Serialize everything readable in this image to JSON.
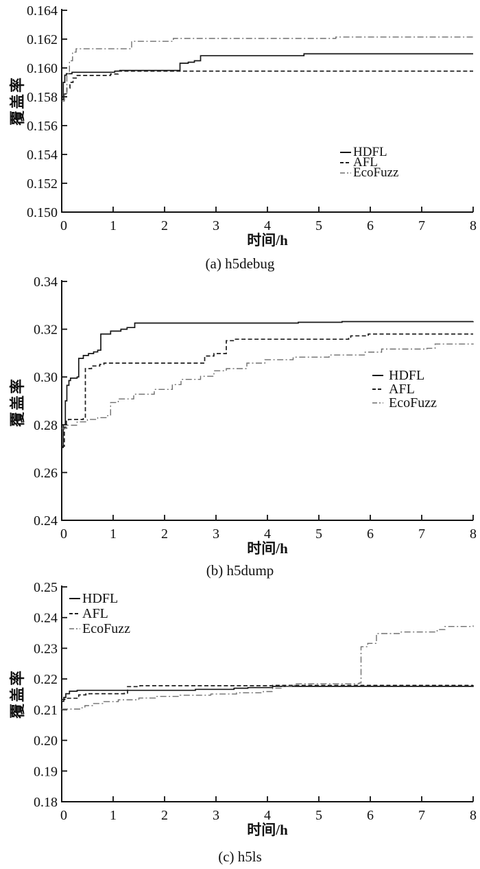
{
  "figure": {
    "ylabel": "覆盖率",
    "xlabel": "时间/h",
    "series_colors": {
      "HDFL": "#161616",
      "AFL": "#1d1d1d",
      "EcoFuzz": "#6e6e6e"
    }
  },
  "chart_data": [
    {
      "type": "line",
      "caption": "(a) h5debug",
      "xlabel": "时间/h",
      "ylabel": "覆盖率",
      "xlim": [
        0,
        8
      ],
      "ylim": [
        0.15,
        0.164
      ],
      "xticks": [
        "0",
        "1",
        "2",
        "3",
        "4",
        "5",
        "6",
        "7",
        "8"
      ],
      "yticks": [
        "0.150",
        "0.152",
        "0.154",
        "0.156",
        "0.158",
        "0.160",
        "0.162",
        "0.164"
      ],
      "grid": false,
      "legend_position": "right-center",
      "series": [
        {
          "name": "HDFL",
          "style": "solid",
          "color": "#161616",
          "points": [
            [
              0,
              0.1578
            ],
            [
              0.03,
              0.159
            ],
            [
              0.06,
              0.1595
            ],
            [
              0.09,
              0.1596
            ],
            [
              0.2,
              0.1597
            ],
            [
              1.03,
              0.15978
            ],
            [
              1.13,
              0.15983
            ],
            [
              2.3,
              0.16033
            ],
            [
              2.46,
              0.1604
            ],
            [
              2.58,
              0.1605
            ],
            [
              2.7,
              0.16085
            ],
            [
              4.71,
              0.16098
            ],
            [
              8,
              0.16098
            ]
          ]
        },
        {
          "name": "AFL",
          "style": "dashed",
          "color": "#1d1d1d",
          "points": [
            [
              0,
              0.1578
            ],
            [
              0.05,
              0.1582
            ],
            [
              0.1,
              0.1586
            ],
            [
              0.16,
              0.159
            ],
            [
              0.22,
              0.1593
            ],
            [
              0.3,
              0.15948
            ],
            [
              0.95,
              0.15958
            ],
            [
              1.1,
              0.15978
            ],
            [
              8,
              0.15978
            ]
          ]
        },
        {
          "name": "EcoFuzz",
          "style": "dashdot",
          "color": "#6e6e6e",
          "points": [
            [
              0,
              0.1577
            ],
            [
              0.05,
              0.1582
            ],
            [
              0.1,
              0.1596
            ],
            [
              0.15,
              0.1605
            ],
            [
              0.21,
              0.1611
            ],
            [
              0.28,
              0.16133
            ],
            [
              1.36,
              0.16185
            ],
            [
              2.17,
              0.16205
            ],
            [
              5.33,
              0.16215
            ],
            [
              8,
              0.16215
            ]
          ]
        }
      ]
    },
    {
      "type": "line",
      "caption": "(b) h5dump",
      "xlabel": "时间/h",
      "ylabel": "覆盖率",
      "xlim": [
        0,
        8
      ],
      "ylim": [
        0.24,
        0.34
      ],
      "xticks": [
        "0",
        "1",
        "2",
        "3",
        "4",
        "5",
        "6",
        "7",
        "8"
      ],
      "yticks": [
        "0.24",
        "0.26",
        "0.28",
        "0.30",
        "0.32",
        "0.34"
      ],
      "grid": false,
      "legend_position": "right-center",
      "series": [
        {
          "name": "HDFL",
          "style": "solid",
          "color": "#161616",
          "points": [
            [
              0,
              0.2705
            ],
            [
              0.03,
              0.28
            ],
            [
              0.07,
              0.29
            ],
            [
              0.1,
              0.2965
            ],
            [
              0.14,
              0.2985
            ],
            [
              0.17,
              0.2995
            ],
            [
              0.3,
              0.3
            ],
            [
              0.33,
              0.3078
            ],
            [
              0.42,
              0.309
            ],
            [
              0.52,
              0.3098
            ],
            [
              0.62,
              0.3105
            ],
            [
              0.7,
              0.3112
            ],
            [
              0.76,
              0.318
            ],
            [
              0.95,
              0.3192
            ],
            [
              1.15,
              0.32
            ],
            [
              1.27,
              0.3207
            ],
            [
              1.42,
              0.3226
            ],
            [
              4.6,
              0.3229
            ],
            [
              5.45,
              0.3232
            ],
            [
              8,
              0.3233
            ]
          ]
        },
        {
          "name": "AFL",
          "style": "dashed",
          "color": "#1d1d1d",
          "points": [
            [
              0,
              0.271
            ],
            [
              0.05,
              0.279
            ],
            [
              0.09,
              0.2815
            ],
            [
              0.13,
              0.2822
            ],
            [
              0.42,
              0.2826
            ],
            [
              0.46,
              0.3035
            ],
            [
              0.58,
              0.3046
            ],
            [
              0.74,
              0.3053
            ],
            [
              0.82,
              0.3058
            ],
            [
              2.78,
              0.3088
            ],
            [
              2.96,
              0.3098
            ],
            [
              3.2,
              0.3152
            ],
            [
              3.36,
              0.3158
            ],
            [
              5.58,
              0.3162
            ],
            [
              5.62,
              0.3172
            ],
            [
              5.96,
              0.318
            ],
            [
              8,
              0.318
            ]
          ]
        },
        {
          "name": "EcoFuzz",
          "style": "dashdot",
          "color": "#6e6e6e",
          "points": [
            [
              0,
              0.2785
            ],
            [
              0.1,
              0.2798
            ],
            [
              0.3,
              0.2812
            ],
            [
              0.5,
              0.2822
            ],
            [
              0.7,
              0.283
            ],
            [
              0.88,
              0.2838
            ],
            [
              0.95,
              0.2893
            ],
            [
              1.1,
              0.2908
            ],
            [
              1.4,
              0.2928
            ],
            [
              1.8,
              0.2948
            ],
            [
              2.15,
              0.2968
            ],
            [
              2.32,
              0.299
            ],
            [
              2.7,
              0.3003
            ],
            [
              2.96,
              0.3026
            ],
            [
              3.2,
              0.3035
            ],
            [
              3.6,
              0.3058
            ],
            [
              3.95,
              0.3072
            ],
            [
              4.5,
              0.3083
            ],
            [
              5.2,
              0.3092
            ],
            [
              5.9,
              0.3104
            ],
            [
              6.22,
              0.3117
            ],
            [
              7.1,
              0.312
            ],
            [
              7.26,
              0.3138
            ],
            [
              8,
              0.314
            ]
          ]
        }
      ]
    },
    {
      "type": "line",
      "caption": "(c) h5ls",
      "xlabel": "时间/h",
      "ylabel": "覆盖率",
      "xlim": [
        0,
        8
      ],
      "ylim": [
        0.18,
        0.25
      ],
      "xticks": [
        "0",
        "1",
        "2",
        "3",
        "4",
        "5",
        "6",
        "7",
        "8"
      ],
      "yticks": [
        "0.18",
        "0.19",
        "0.20",
        "0.21",
        "0.22",
        "0.23",
        "0.24",
        "0.25"
      ],
      "grid": false,
      "legend_position": "upper-left",
      "series": [
        {
          "name": "HDFL",
          "style": "solid",
          "color": "#161616",
          "points": [
            [
              0,
              0.2127
            ],
            [
              0.04,
              0.214
            ],
            [
              0.08,
              0.2152
            ],
            [
              0.15,
              0.216
            ],
            [
              0.3,
              0.2163
            ],
            [
              2.6,
              0.2166
            ],
            [
              3.35,
              0.217
            ],
            [
              3.62,
              0.2172
            ],
            [
              4.1,
              0.2176
            ],
            [
              8,
              0.2177
            ]
          ]
        },
        {
          "name": "AFL",
          "style": "dashed",
          "color": "#1d1d1d",
          "points": [
            [
              0,
              0.2133
            ],
            [
              0.06,
              0.2137
            ],
            [
              0.33,
              0.2148
            ],
            [
              0.47,
              0.2152
            ],
            [
              1.22,
              0.2154
            ],
            [
              1.28,
              0.2175
            ],
            [
              1.52,
              0.2178
            ],
            [
              4.1,
              0.2179
            ],
            [
              8,
              0.218
            ]
          ]
        },
        {
          "name": "EcoFuzz",
          "style": "dashdot",
          "color": "#6e6e6e",
          "points": [
            [
              0,
              0.2102
            ],
            [
              0.35,
              0.2106
            ],
            [
              0.45,
              0.2113
            ],
            [
              0.62,
              0.212
            ],
            [
              0.82,
              0.2126
            ],
            [
              1.1,
              0.2132
            ],
            [
              1.5,
              0.2138
            ],
            [
              1.82,
              0.2143
            ],
            [
              2.3,
              0.2147
            ],
            [
              2.9,
              0.2151
            ],
            [
              3.4,
              0.2155
            ],
            [
              3.92,
              0.2159
            ],
            [
              4.1,
              0.217
            ],
            [
              4.3,
              0.2176
            ],
            [
              4.52,
              0.2184
            ],
            [
              5.78,
              0.2187
            ],
            [
              5.82,
              0.2305
            ],
            [
              5.95,
              0.2316
            ],
            [
              6.12,
              0.2348
            ],
            [
              6.6,
              0.2353
            ],
            [
              7.3,
              0.2361
            ],
            [
              7.45,
              0.2371
            ],
            [
              8,
              0.2374
            ]
          ]
        }
      ]
    }
  ]
}
